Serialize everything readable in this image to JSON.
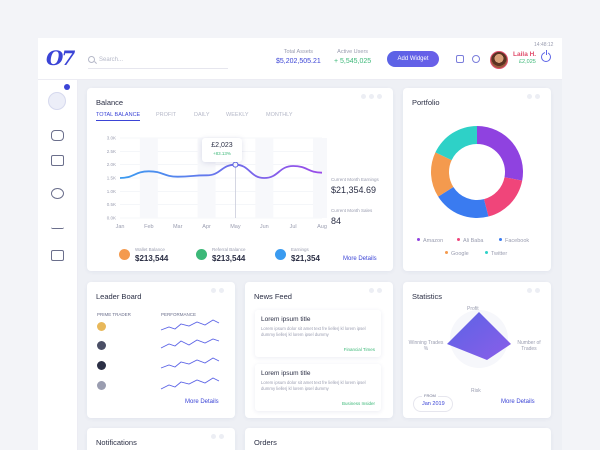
{
  "header": {
    "time": "14:48:12",
    "search_placeholder": "Search...",
    "total_assets_label": "Total Assets",
    "total_assets_value": "$5,202,505.21",
    "active_users_label": "Active Users",
    "active_users_value": "+ 5,545,025",
    "add_widget": "Add Widget",
    "user_name": "Laila H.",
    "user_money": "£2,025"
  },
  "balance": {
    "title": "Balance",
    "tabs": [
      "TOTAL BALANCE",
      "PROFIT",
      "DAILY",
      "WEEKLY",
      "MONTHLY"
    ],
    "tooltip_value": "£2,023",
    "tooltip_change": "+83.13%",
    "earnings_label": "Current Month Earnings",
    "earnings_value": "$21,354.69",
    "sales_label": "Current Month Sales",
    "sales_value": "84",
    "wallet_label": "Wallet Balance",
    "wallet_value": "$213,544",
    "referral_label": "Referral Balance",
    "referral_value": "$213,544",
    "earnings2_label": "Earnings",
    "earnings2_value": "$21,354",
    "more": "More Details"
  },
  "chart_data": {
    "type": "line",
    "categories": [
      "Jan",
      "Feb",
      "Mar",
      "Apr",
      "May",
      "Jun",
      "Jul",
      "Aug"
    ],
    "yticks": [
      "3.0K",
      "2.5K",
      "2.0K",
      "1.5K",
      "1.0K",
      "0.5K",
      "0.0K"
    ],
    "ylim": [
      0,
      3.0
    ],
    "series": [
      {
        "values": [
          1.5,
          1.75,
          1.55,
          1.6,
          2.0,
          1.5,
          1.95,
          1.7
        ]
      }
    ],
    "highlight_x": "May"
  },
  "portfolio": {
    "title": "Portfolio",
    "legend": [
      "Amazon",
      "Ali Baba",
      "Facebook",
      "Google",
      "Twitter"
    ],
    "colors": [
      "#8f42e0",
      "#f0457a",
      "#3a7bf0",
      "#f49a4e",
      "#2ed1c7"
    ],
    "values": [
      28,
      18,
      20,
      16,
      18
    ]
  },
  "leaderboard": {
    "title": "Leader Board",
    "col1": "PRIME TRADER",
    "col2": "PERFORMANCE",
    "more": "More Details"
  },
  "news": {
    "title": "News Feed",
    "items": [
      {
        "headline": "Lorem ipsum title",
        "body": "Lorem ipsum dolor sit amet text fre liellerj kl lorem ipsel dummy liellerj kl lorem ipsel dummy",
        "source": "Financial Times"
      },
      {
        "headline": "Lorem ipsum title",
        "body": "Lorem ipsum dolor sit amet text fre liellerj kl lorem ipsel dummy liellerj kl lorem ipsel dummy",
        "source": "Business Insider"
      }
    ]
  },
  "statistics": {
    "title": "Statistics",
    "labels": [
      "Profit",
      "Winning Trades %",
      "Number of Trades",
      "Risk"
    ],
    "from_label": "FROM",
    "from_value": "Jan 2019",
    "more": "More Details"
  },
  "bottom": {
    "notifications": "Notifications",
    "orders": "Orders"
  }
}
